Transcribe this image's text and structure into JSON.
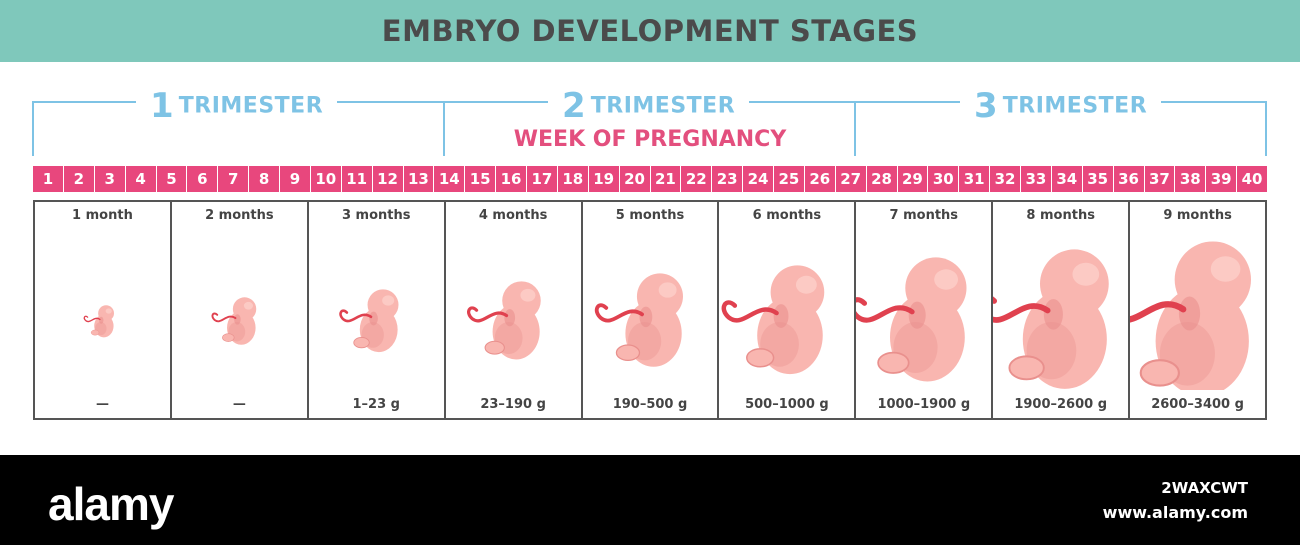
{
  "title": "EMBRYO DEVELOPMENT STAGES",
  "trimesters": [
    {
      "number": "1",
      "label": "TRIMESTER"
    },
    {
      "number": "2",
      "label": "TRIMESTER"
    },
    {
      "number": "3",
      "label": "TRIMESTER"
    }
  ],
  "week_label": "WEEK OF PREGNANCY",
  "weeks": [
    "1",
    "2",
    "3",
    "4",
    "5",
    "6",
    "7",
    "8",
    "9",
    "10",
    "11",
    "12",
    "13",
    "14",
    "15",
    "16",
    "17",
    "18",
    "19",
    "20",
    "21",
    "22",
    "23",
    "24",
    "25",
    "26",
    "27",
    "28",
    "29",
    "30",
    "31",
    "32",
    "33",
    "34",
    "35",
    "36",
    "37",
    "38",
    "39",
    "40"
  ],
  "months": [
    {
      "label": "1 month",
      "weight": "—"
    },
    {
      "label": "2 months",
      "weight": "—"
    },
    {
      "label": "3 months",
      "weight": "1–23 g"
    },
    {
      "label": "4 months",
      "weight": "23–190 g"
    },
    {
      "label": "5 months",
      "weight": "190–500 g"
    },
    {
      "label": "6 months",
      "weight": "500–1000 g"
    },
    {
      "label": "7 months",
      "weight": "1000–1900 g"
    },
    {
      "label": "8 months",
      "weight": "1900–2600 g"
    },
    {
      "label": "9 months",
      "weight": "2600–3400 g"
    }
  ],
  "colors": {
    "header": "#7fc8bb",
    "trimester": "#7ec3e5",
    "week_bar": "#e8477d",
    "week_label": "#e34f7e",
    "embryo_fill": "#f9b6b0",
    "embryo_shadow": "#e9908d",
    "cord": "#e0414f"
  },
  "watermark": {
    "brand": "alamy",
    "image_id": "2WAXCWT",
    "url": "www.alamy.com"
  }
}
